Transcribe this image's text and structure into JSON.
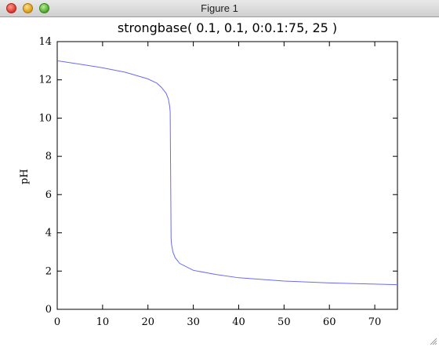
{
  "window": {
    "title": "Figure 1"
  },
  "chart_data": {
    "type": "line",
    "title": "strongbase( 0.1, 0.1, 0:0.1:75, 25 )",
    "xlabel": "",
    "ylabel": "pH",
    "xlim": [
      0,
      75
    ],
    "ylim": [
      0,
      14
    ],
    "x_ticks": [
      0,
      10,
      20,
      30,
      40,
      50,
      60,
      70
    ],
    "y_ticks": [
      0,
      2,
      4,
      6,
      8,
      10,
      12,
      14
    ],
    "grid": false,
    "line_color": "#6b6bf0",
    "series": [
      {
        "x": [
          0,
          5,
          10,
          15,
          20,
          22,
          23,
          24,
          24.5,
          24.8,
          24.9,
          25.0,
          25.1,
          25.2,
          25.5,
          26,
          27,
          30,
          35,
          40,
          50,
          60,
          70,
          75
        ],
        "values": [
          13.0,
          12.82,
          12.63,
          12.4,
          12.05,
          11.82,
          11.6,
          11.3,
          11.0,
          10.6,
          10.3,
          7.0,
          3.7,
          3.4,
          3.0,
          2.7,
          2.4,
          2.04,
          1.82,
          1.65,
          1.48,
          1.38,
          1.32,
          1.29
        ]
      }
    ]
  }
}
